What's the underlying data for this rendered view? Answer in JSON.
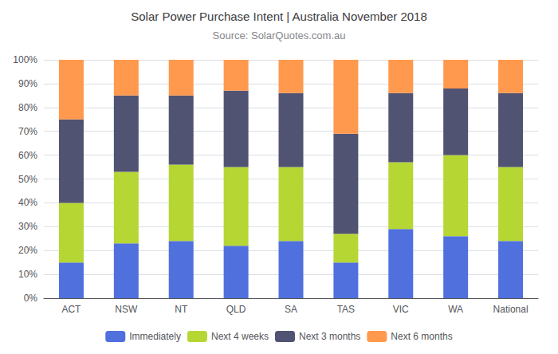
{
  "chart_data": {
    "type": "bar",
    "title": "Solar Power Purchase Intent | Australia November 2018",
    "subtitle": "Source: SolarQuotes.com.au",
    "categories": [
      "ACT",
      "NSW",
      "NT",
      "QLD",
      "SA",
      "TAS",
      "VIC",
      "WA",
      "National"
    ],
    "series": [
      {
        "name": "Immediately",
        "values": [
          15,
          23,
          24,
          22,
          24,
          15,
          29,
          26,
          24
        ]
      },
      {
        "name": "Next 4 weeks",
        "values": [
          25,
          30,
          32,
          33,
          31,
          12,
          28,
          34,
          31
        ]
      },
      {
        "name": "Next 3 months",
        "values": [
          35,
          32,
          29,
          32,
          31,
          42,
          29,
          28,
          31
        ]
      },
      {
        "name": "Next 6 months",
        "values": [
          25,
          15,
          15,
          13,
          14,
          31,
          14,
          12,
          14
        ]
      }
    ],
    "stacked": true,
    "ylim": [
      0,
      100
    ],
    "yticks": [
      {
        "value": 0,
        "label": "0%"
      },
      {
        "value": 10,
        "label": "10%"
      },
      {
        "value": 20,
        "label": "20%"
      },
      {
        "value": 30,
        "label": "30%"
      },
      {
        "value": 40,
        "label": "40%"
      },
      {
        "value": 50,
        "label": "50%"
      },
      {
        "value": 60,
        "label": "60%"
      },
      {
        "value": 70,
        "label": "70%"
      },
      {
        "value": 80,
        "label": "80%"
      },
      {
        "value": 90,
        "label": "90%"
      },
      {
        "value": 100,
        "label": "100%"
      }
    ],
    "grid": true,
    "legend": "bottom"
  }
}
